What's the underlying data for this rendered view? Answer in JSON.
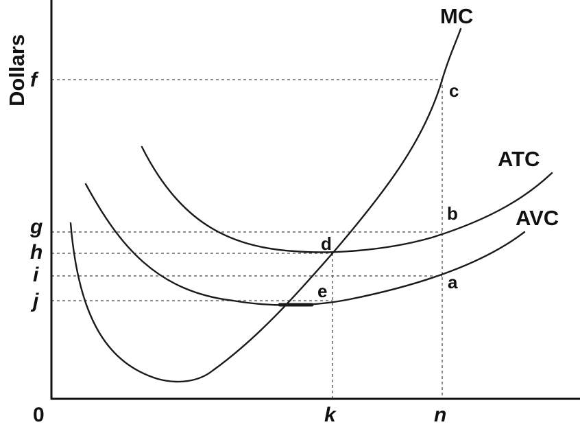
{
  "diagram": {
    "y_axis_label": "Dollars",
    "origin_label": "0",
    "curves": {
      "mc": "MC",
      "atc": "ATC",
      "avc": "AVC"
    },
    "y_ticks": [
      "f",
      "g",
      "h",
      "i",
      "j"
    ],
    "x_ticks": [
      "k",
      "n"
    ],
    "points": [
      "a",
      "b",
      "c",
      "d",
      "e"
    ]
  }
}
